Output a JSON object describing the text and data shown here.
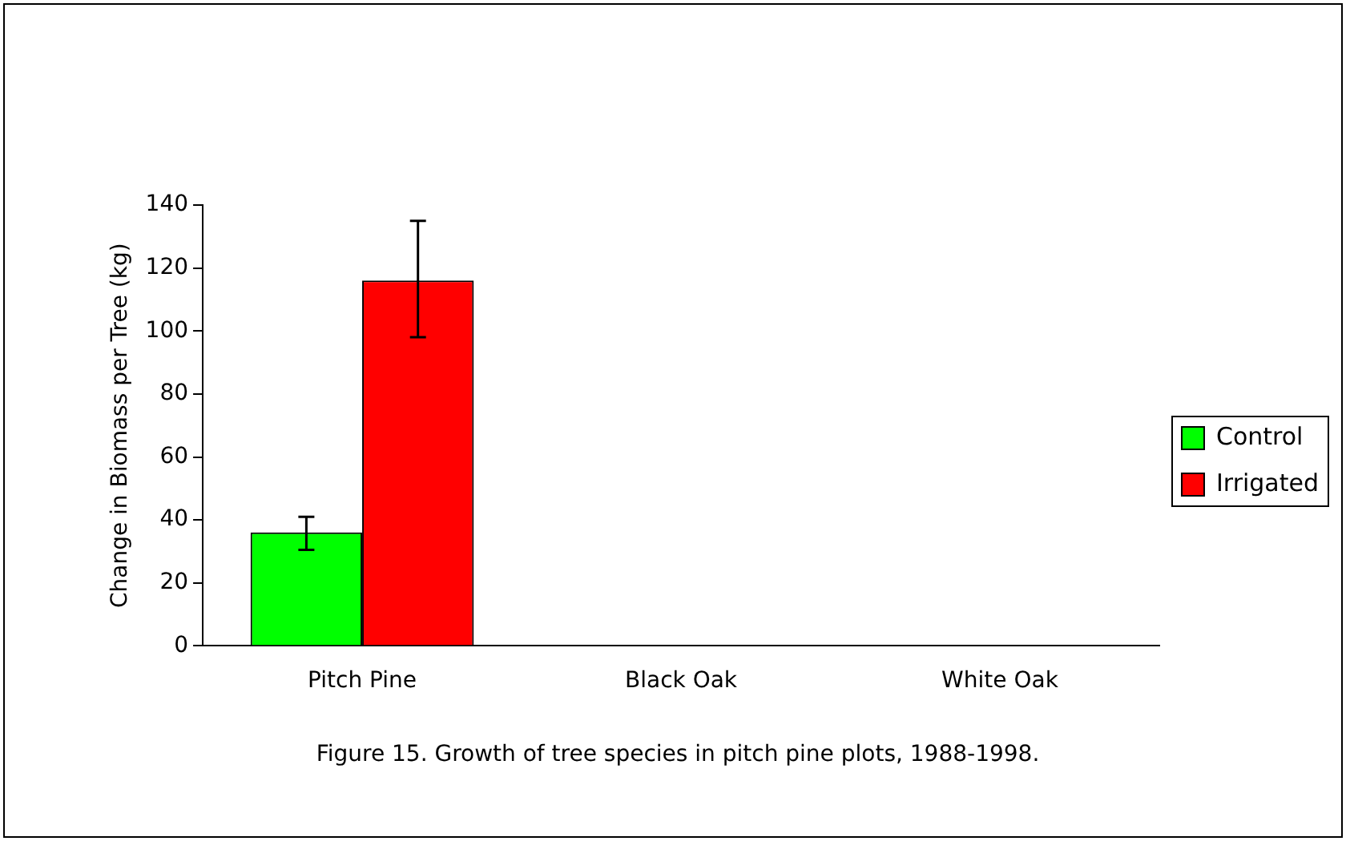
{
  "chart_data": {
    "type": "bar",
    "title": "Figure 15.   Growth of tree species in pitch pine plots, 1988-1998.",
    "ylabel": "Change in Biomass per Tree (kg)",
    "categories": [
      "Pitch Pine",
      "Black Oak",
      "White Oak"
    ],
    "series": [
      {
        "name": "Control",
        "color": "#00ff00",
        "values": [
          36,
          null,
          null
        ],
        "errors": [
          [
            30.5,
            41
          ],
          null,
          null
        ]
      },
      {
        "name": "Irrigated",
        "color": "#ff0000",
        "values": [
          116,
          null,
          null
        ],
        "errors": [
          [
            98,
            135
          ],
          null,
          null
        ]
      }
    ],
    "ylim": [
      0,
      140
    ],
    "yticks": [
      0,
      20,
      40,
      60,
      80,
      100,
      120,
      140
    ],
    "grid": false,
    "legend": "right"
  }
}
